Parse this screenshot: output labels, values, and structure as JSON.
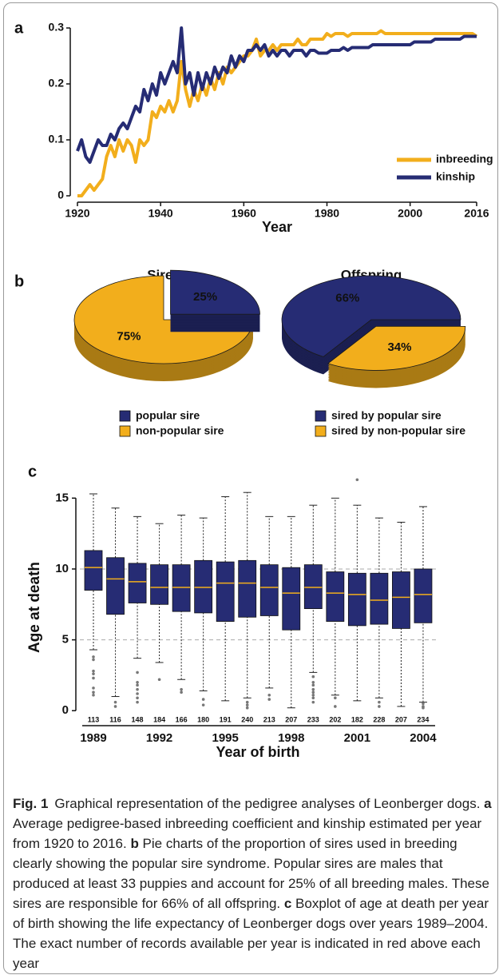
{
  "chart_data": [
    {
      "type": "line",
      "label": "a",
      "x_label": "Year",
      "x": [
        1920,
        1921,
        1922,
        1923,
        1924,
        1925,
        1926,
        1927,
        1928,
        1929,
        1930,
        1931,
        1932,
        1933,
        1934,
        1935,
        1936,
        1937,
        1938,
        1939,
        1940,
        1941,
        1942,
        1943,
        1944,
        1945,
        1946,
        1947,
        1948,
        1949,
        1950,
        1951,
        1952,
        1953,
        1954,
        1955,
        1956,
        1957,
        1958,
        1959,
        1960,
        1961,
        1962,
        1963,
        1964,
        1965,
        1966,
        1967,
        1968,
        1969,
        1970,
        1971,
        1972,
        1973,
        1974,
        1975,
        1976,
        1977,
        1978,
        1979,
        1980,
        1981,
        1982,
        1983,
        1984,
        1985,
        1986,
        1987,
        1988,
        1989,
        1990,
        1991,
        1992,
        1993,
        1994,
        1995,
        1996,
        1997,
        1998,
        1999,
        2000,
        2001,
        2002,
        2003,
        2004,
        2005,
        2006,
        2007,
        2008,
        2009,
        2010,
        2011,
        2012,
        2013,
        2014,
        2015,
        2016
      ],
      "xlim": [
        1920,
        2016
      ],
      "xticks": [
        1920,
        1940,
        1960,
        1980,
        2000,
        2016
      ],
      "ylim": [
        0,
        0.31
      ],
      "yticks": [
        0,
        0.1,
        0.2,
        0.3
      ],
      "series": [
        {
          "name": "inbreeding",
          "color": "#f2ae1c",
          "values": [
            0,
            0,
            0.01,
            0.02,
            0.01,
            0.02,
            0.03,
            0.07,
            0.09,
            0.07,
            0.1,
            0.08,
            0.1,
            0.09,
            0.06,
            0.1,
            0.09,
            0.1,
            0.15,
            0.14,
            0.16,
            0.15,
            0.17,
            0.15,
            0.17,
            0.24,
            0.19,
            0.16,
            0.19,
            0.17,
            0.2,
            0.18,
            0.21,
            0.19,
            0.22,
            0.2,
            0.23,
            0.22,
            0.23,
            0.24,
            0.25,
            0.25,
            0.26,
            0.28,
            0.25,
            0.26,
            0.26,
            0.27,
            0.26,
            0.27,
            0.27,
            0.27,
            0.27,
            0.28,
            0.27,
            0.27,
            0.28,
            0.28,
            0.28,
            0.28,
            0.29,
            0.285,
            0.29,
            0.29,
            0.29,
            0.285,
            0.29,
            0.29,
            0.29,
            0.29,
            0.29,
            0.29,
            0.29,
            0.295,
            0.29,
            0.29,
            0.29,
            0.29,
            0.29,
            0.29,
            0.29,
            0.29,
            0.29,
            0.29,
            0.29,
            0.29,
            0.29,
            0.29,
            0.29,
            0.29,
            0.29,
            0.29,
            0.29,
            0.29,
            0.29,
            0.29,
            0.285
          ]
        },
        {
          "name": "kinship",
          "color": "#262c74",
          "values": [
            0.08,
            0.1,
            0.07,
            0.06,
            0.08,
            0.1,
            0.09,
            0.09,
            0.11,
            0.1,
            0.12,
            0.13,
            0.12,
            0.14,
            0.16,
            0.15,
            0.19,
            0.17,
            0.2,
            0.18,
            0.22,
            0.2,
            0.22,
            0.24,
            0.22,
            0.3,
            0.2,
            0.22,
            0.18,
            0.22,
            0.19,
            0.22,
            0.2,
            0.23,
            0.21,
            0.23,
            0.22,
            0.25,
            0.23,
            0.25,
            0.24,
            0.26,
            0.26,
            0.27,
            0.26,
            0.27,
            0.25,
            0.26,
            0.25,
            0.26,
            0.26,
            0.25,
            0.26,
            0.26,
            0.26,
            0.25,
            0.26,
            0.26,
            0.255,
            0.255,
            0.255,
            0.26,
            0.26,
            0.26,
            0.265,
            0.26,
            0.265,
            0.265,
            0.265,
            0.265,
            0.265,
            0.27,
            0.27,
            0.27,
            0.27,
            0.27,
            0.27,
            0.27,
            0.27,
            0.27,
            0.27,
            0.275,
            0.275,
            0.275,
            0.275,
            0.275,
            0.28,
            0.28,
            0.28,
            0.28,
            0.28,
            0.28,
            0.28,
            0.285,
            0.285,
            0.285,
            0.285
          ]
        }
      ]
    },
    {
      "type": "pie",
      "label": "b",
      "title": "Sires",
      "categories": [
        "popular sire",
        "non-popular sire"
      ],
      "values": [
        25,
        75
      ],
      "value_labels": [
        "25%",
        "75%"
      ],
      "colors": [
        "#262c74",
        "#f2ae1c"
      ]
    },
    {
      "type": "pie",
      "title": "Offspring",
      "categories": [
        "sired by popular sire",
        "sired by non-popular sire"
      ],
      "values": [
        66,
        34
      ],
      "value_labels": [
        "66%",
        "34%"
      ],
      "colors": [
        "#262c74",
        "#f2ae1c"
      ]
    },
    {
      "type": "box",
      "label": "c",
      "x_label": "Year of birth",
      "y_label": "Age at death",
      "categories": [
        "1989",
        null,
        null,
        "1992",
        null,
        null,
        "1995",
        null,
        null,
        "1998",
        null,
        null,
        "2001",
        null,
        null,
        "2004"
      ],
      "ylim": [
        -1,
        16.5
      ],
      "yticks": [
        0,
        5,
        10,
        15
      ],
      "hlines": [
        5,
        10
      ],
      "color": "#262c74",
      "median_color": "#f2ae1c",
      "count_color": "#b22222",
      "whislo": [
        4.3,
        1.0,
        3.7,
        3.4,
        2.2,
        1.4,
        0.7,
        0.9,
        1.6,
        0.2,
        2.7,
        1.1,
        0.7,
        0.9,
        0.3,
        0.6
      ],
      "q1": [
        8.5,
        6.8,
        7.6,
        7.5,
        7.0,
        6.9,
        6.3,
        6.6,
        6.7,
        5.7,
        7.2,
        6.3,
        6.0,
        6.1,
        5.8,
        6.2
      ],
      "med": [
        10.1,
        9.3,
        9.1,
        8.7,
        8.7,
        8.7,
        9.0,
        9.0,
        8.7,
        8.3,
        8.7,
        8.3,
        8.2,
        7.8,
        8.0,
        8.2
      ],
      "q3": [
        11.3,
        10.8,
        10.4,
        10.3,
        10.3,
        10.6,
        10.5,
        10.6,
        10.3,
        10.1,
        10.3,
        9.8,
        9.7,
        9.7,
        9.8,
        10.0
      ],
      "whishi": [
        15.3,
        14.3,
        13.7,
        13.2,
        13.8,
        13.6,
        15.1,
        15.4,
        13.7,
        13.7,
        14.5,
        15.0,
        14.5,
        13.6,
        13.3,
        14.4
      ],
      "fliers": [
        [
          3.8,
          3.6,
          2.8,
          2.6,
          2.3,
          1.6,
          1.3,
          1.1
        ],
        [
          0.6,
          0.3
        ],
        [
          2.7,
          2.0,
          1.8,
          1.5,
          1.2,
          0.9,
          0.6
        ],
        [
          2.2
        ],
        [
          1.5,
          1.3
        ],
        [
          0.8,
          0.4
        ],
        [],
        [
          0.6,
          0.4,
          0.2
        ],
        [
          1.1,
          0.8
        ],
        [],
        [
          2.4,
          2.0,
          1.8,
          1.5,
          1.3,
          1.1,
          0.9,
          0.6
        ],
        [
          0.9,
          0.3
        ],
        [
          16.3
        ],
        [
          0.6,
          0.3
        ],
        [],
        [
          0.5,
          0.3,
          0.2
        ]
      ],
      "counts": [
        113,
        116,
        148,
        184,
        166,
        180,
        191,
        240,
        213,
        207,
        233,
        202,
        182,
        228,
        207,
        234
      ]
    }
  ],
  "caption": {
    "label": "Fig. 1",
    "parts": [
      "Graphical representation of the pedigree analyses of Leonberger dogs. ",
      "a",
      " Average pedigree-based inbreeding coefficient and kinship estimated per year from 1920 to 2016. ",
      "b",
      " Pie charts of the proportion of sires used in breeding clearly showing the popular sire syndrome. Popular sires are males that produced at least 33 puppies and account for 25% of all breeding males. These sires are responsible for 66% of all offspring. ",
      "c",
      " Boxplot of age at death per year of birth showing the life expectancy of Leonberger dogs over years 1989–2004. The exact number of records available per year is indicated in red above each year"
    ]
  }
}
